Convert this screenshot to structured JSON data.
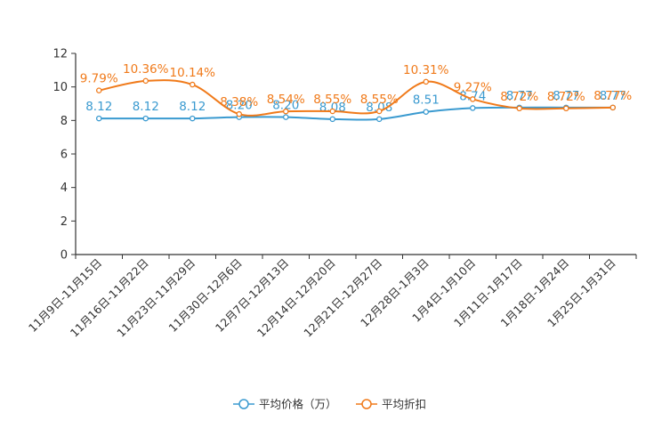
{
  "chart_data": {
    "type": "line",
    "title": "",
    "xlabel": "",
    "ylabel": "",
    "ylim": [
      0,
      12
    ],
    "yticks": [
      "0",
      "2",
      "4",
      "6",
      "8",
      "10",
      "12"
    ],
    "grid": false,
    "legend_position": "bottom-center",
    "categories": [
      "11月9日-11月15日",
      "11月16日-11月22日",
      "11月23日-11月29日",
      "11月30日-12月6日",
      "12月7日-12月13日",
      "12月14日-12月20日",
      "12月21日-12月27日",
      "12月28日-1月3日",
      "1月4日-1月10日",
      "1月11日-1月17日",
      "1月18日-1月24日",
      "1月25日-1月31日"
    ],
    "series": [
      {
        "name": "平均价格（万）",
        "color": "#3a9ad0",
        "values": [
          8.12,
          8.12,
          8.12,
          8.2,
          8.2,
          8.08,
          8.08,
          8.51,
          8.74,
          8.77,
          8.77,
          8.77
        ],
        "labels": [
          "8.12",
          "8.12",
          "8.12",
          "8.20",
          "8.20",
          "8.08",
          "8.08",
          "8.51",
          "8.74",
          "8.77",
          "8.77",
          "8.77"
        ]
      },
      {
        "name": "平均折扣",
        "color": "#f07a1a",
        "values": [
          9.79,
          10.36,
          10.14,
          8.38,
          8.54,
          8.55,
          8.55,
          10.31,
          9.27,
          8.72,
          8.72,
          8.77
        ],
        "labels": [
          "9.79%",
          "10.36%",
          "10.14%",
          "8.38%",
          "8.54%",
          "8.55%",
          "8.55%",
          "10.31%",
          "9.27%",
          "8.72%",
          "8.72%",
          "8.77%"
        ]
      }
    ]
  }
}
